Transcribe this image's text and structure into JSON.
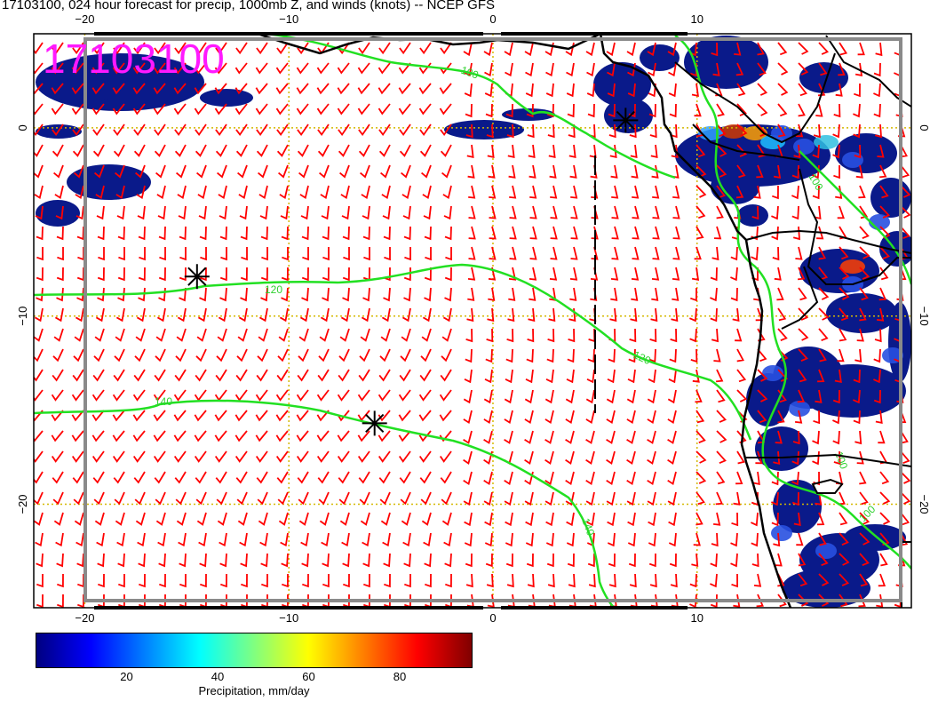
{
  "header": {
    "title": "17103100, 024 hour forecast for precip, 1000mb Z, and winds (knots) -- NCEP GFS",
    "stamp": "17103100"
  },
  "map": {
    "lon_ticks": [
      "−20",
      "−10",
      "0",
      "10"
    ],
    "lat_ticks": [
      "0",
      "−10",
      "−20"
    ],
    "lon_range": [
      -22.5,
      20.5
    ],
    "lat_range": [
      -25.5,
      5.0
    ],
    "grid_lines": {
      "lon": [
        -20,
        -10,
        0,
        10
      ],
      "lat": [
        0,
        -10,
        -20
      ],
      "style": "dotted",
      "color": "#d4b800"
    },
    "colors": {
      "wind_barbs": "#ff0000",
      "z_contours": "#22e022",
      "coastline": "#000000",
      "precip_low": "#0a1a8a",
      "precip_high": "#c00000",
      "stamp": "#ff19ff"
    },
    "contour_labels": [
      "100",
      "120",
      "120",
      "140",
      "140",
      "100",
      "100",
      "100"
    ],
    "markers": [
      {
        "type": "asterisk",
        "lon": -14.5,
        "lat": -7.9
      },
      {
        "type": "asterisk",
        "lon": -5.8,
        "lat": -15.7
      },
      {
        "type": "asterisk",
        "lon": 6.5,
        "lat": 0.4
      }
    ]
  },
  "colorbar": {
    "ticks": [
      "20",
      "40",
      "60",
      "80"
    ],
    "label": "Precipitation, mm/day",
    "range": [
      0,
      96
    ],
    "stops": [
      "#000080",
      "#0000ff",
      "#0080ff",
      "#00ffff",
      "#80ff80",
      "#ffff00",
      "#ff8000",
      "#ff0000",
      "#800000"
    ]
  }
}
